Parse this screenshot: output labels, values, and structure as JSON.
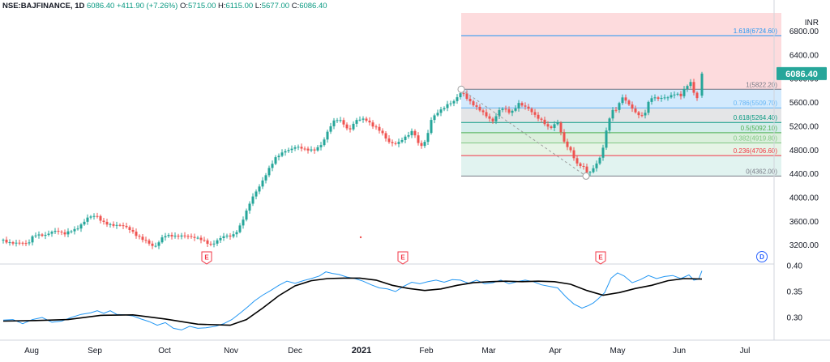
{
  "header": {
    "symbol": "NSE:BAJFINANCE, 1D",
    "last": "6086.40",
    "change": "+411.90 (+7.26%)",
    "o_label": "O:",
    "o": "5715.00",
    "h_label": "H:",
    "h": "6115.00",
    "l_label": "L:",
    "l": "5677.00",
    "c_label": "C:",
    "c": "6086.40"
  },
  "colors": {
    "up": "#26a69a",
    "down": "#ef5350",
    "price_badge": "#26a69a",
    "fib_line": "#9e9e9e",
    "indicator_line": "#2196f3",
    "indicator_ma": "#000000"
  },
  "price_axis": {
    "currency": "INR",
    "current_price": "6086.40",
    "ticks": [
      "6800.00",
      "6400.00",
      "6000.00",
      "5600.00",
      "5200.00",
      "4800.00",
      "4400.00",
      "4000.00",
      "3600.00",
      "3200.00"
    ]
  },
  "indicator_axis": {
    "ticks": [
      "0.40",
      "0.35",
      "0.30"
    ]
  },
  "x_axis": {
    "labels": [
      "Aug",
      "Sep",
      "Oct",
      "Nov",
      "Dec",
      "2021",
      "Feb",
      "Mar",
      "Apr",
      "May",
      "Jun",
      "Jul"
    ],
    "bold": "2021"
  },
  "events": {
    "label": "E",
    "dividend_label": "D"
  },
  "chart_data": [
    {
      "type": "candlestick",
      "title": "NSE:BAJFINANCE, 1D",
      "ylabel": "INR",
      "ylim": [
        3000,
        7000
      ],
      "yticks": [
        3200,
        3600,
        4000,
        4400,
        4800,
        5200,
        5600,
        6000,
        6400,
        6800
      ],
      "xticks": [
        "Aug",
        "Sep",
        "Oct",
        "Nov",
        "Dec",
        "2021",
        "Feb",
        "Mar",
        "Apr",
        "May",
        "Jun",
        "Jul"
      ],
      "last_price": 6086.4,
      "fibonacci_retracement": {
        "levels": [
          {
            "ratio": "1.618",
            "price": 6724.6
          },
          {
            "ratio": "1",
            "price": 5822.2
          },
          {
            "ratio": "0.786",
            "price": 5509.7
          },
          {
            "ratio": "0.618",
            "price": 5264.4
          },
          {
            "ratio": "0.5",
            "price": 5092.1
          },
          {
            "ratio": "0.382",
            "price": 4919.8
          },
          {
            "ratio": "0.236",
            "price": 4706.6
          },
          {
            "ratio": "0",
            "price": 4362.0
          }
        ]
      },
      "close_anchors": [
        {
          "x": 0,
          "close": 3280
        },
        {
          "x": 18,
          "close": 3230
        },
        {
          "x": 30,
          "close": 3210
        },
        {
          "x": 38,
          "close": 3400
        },
        {
          "x": 52,
          "close": 3350
        },
        {
          "x": 66,
          "close": 3460
        },
        {
          "x": 76,
          "close": 3400
        },
        {
          "x": 90,
          "close": 3450
        },
        {
          "x": 104,
          "close": 3680
        },
        {
          "x": 114,
          "close": 3690
        },
        {
          "x": 122,
          "close": 3580
        },
        {
          "x": 132,
          "close": 3560
        },
        {
          "x": 146,
          "close": 3520
        },
        {
          "x": 158,
          "close": 3450
        },
        {
          "x": 172,
          "close": 3300
        },
        {
          "x": 186,
          "close": 3150
        },
        {
          "x": 198,
          "close": 3380
        },
        {
          "x": 212,
          "close": 3330
        },
        {
          "x": 226,
          "close": 3380
        },
        {
          "x": 240,
          "close": 3300
        },
        {
          "x": 256,
          "close": 3220
        },
        {
          "x": 270,
          "close": 3330
        },
        {
          "x": 282,
          "close": 3350
        },
        {
          "x": 290,
          "close": 3480
        },
        {
          "x": 298,
          "close": 3700
        },
        {
          "x": 306,
          "close": 3950
        },
        {
          "x": 316,
          "close": 4200
        },
        {
          "x": 326,
          "close": 4450
        },
        {
          "x": 336,
          "close": 4650
        },
        {
          "x": 348,
          "close": 4800
        },
        {
          "x": 360,
          "close": 4850
        },
        {
          "x": 372,
          "close": 4800
        },
        {
          "x": 384,
          "close": 4820
        },
        {
          "x": 394,
          "close": 4900
        },
        {
          "x": 402,
          "close": 5150
        },
        {
          "x": 410,
          "close": 5340
        },
        {
          "x": 418,
          "close": 5300
        },
        {
          "x": 426,
          "close": 5100
        },
        {
          "x": 436,
          "close": 5300
        },
        {
          "x": 446,
          "close": 5350
        },
        {
          "x": 456,
          "close": 5200
        },
        {
          "x": 466,
          "close": 5100
        },
        {
          "x": 476,
          "close": 4950
        },
        {
          "x": 486,
          "close": 4900
        },
        {
          "x": 496,
          "close": 5000
        },
        {
          "x": 506,
          "close": 5150
        },
        {
          "x": 514,
          "close": 4850
        },
        {
          "x": 522,
          "close": 4950
        },
        {
          "x": 528,
          "close": 5300
        },
        {
          "x": 536,
          "close": 5450
        },
        {
          "x": 546,
          "close": 5550
        },
        {
          "x": 556,
          "close": 5600
        },
        {
          "x": 566,
          "close": 5800
        },
        {
          "x": 574,
          "close": 5650
        },
        {
          "x": 584,
          "close": 5500
        },
        {
          "x": 594,
          "close": 5400
        },
        {
          "x": 604,
          "close": 5300
        },
        {
          "x": 614,
          "close": 5500
        },
        {
          "x": 626,
          "close": 5420
        },
        {
          "x": 636,
          "close": 5600
        },
        {
          "x": 646,
          "close": 5500
        },
        {
          "x": 656,
          "close": 5380
        },
        {
          "x": 666,
          "close": 5300
        },
        {
          "x": 674,
          "close": 5150
        },
        {
          "x": 684,
          "close": 5250
        },
        {
          "x": 692,
          "close": 4950
        },
        {
          "x": 700,
          "close": 4800
        },
        {
          "x": 708,
          "close": 4550
        },
        {
          "x": 716,
          "close": 4500
        },
        {
          "x": 722,
          "close": 4400
        },
        {
          "x": 730,
          "close": 4550
        },
        {
          "x": 738,
          "close": 4700
        },
        {
          "x": 744,
          "close": 5100
        },
        {
          "x": 750,
          "close": 5450
        },
        {
          "x": 756,
          "close": 5500
        },
        {
          "x": 764,
          "close": 5700
        },
        {
          "x": 772,
          "close": 5550
        },
        {
          "x": 780,
          "close": 5420
        },
        {
          "x": 790,
          "close": 5380
        },
        {
          "x": 798,
          "close": 5680
        },
        {
          "x": 808,
          "close": 5650
        },
        {
          "x": 818,
          "close": 5700
        },
        {
          "x": 828,
          "close": 5750
        },
        {
          "x": 836,
          "close": 5700
        },
        {
          "x": 842,
          "close": 5850
        },
        {
          "x": 848,
          "close": 5950
        },
        {
          "x": 854,
          "close": 5700
        },
        {
          "x": 858,
          "close": 5680
        },
        {
          "x": 862,
          "close": 6086.4
        }
      ],
      "last_candle": {
        "open": 5715.0,
        "high": 6115.0,
        "low": 5677.0,
        "close": 6086.4
      }
    },
    {
      "type": "line",
      "ylim": [
        0.265,
        0.41
      ],
      "yticks": [
        0.3,
        0.35,
        0.4
      ],
      "series": [
        {
          "points": [
            [
              0,
              0.295
            ],
            [
              12,
              0.296
            ],
            [
              24,
              0.288
            ],
            [
              36,
              0.296
            ],
            [
              48,
              0.3
            ],
            [
              60,
              0.291
            ],
            [
              72,
              0.293
            ],
            [
              84,
              0.3
            ],
            [
              96,
              0.306
            ],
            [
              108,
              0.309
            ],
            [
              116,
              0.313
            ],
            [
              124,
              0.308
            ],
            [
              132,
              0.313
            ],
            [
              140,
              0.306
            ],
            [
              150,
              0.305
            ],
            [
              160,
              0.303
            ],
            [
              170,
              0.297
            ],
            [
              180,
              0.292
            ],
            [
              190,
              0.285
            ],
            [
              200,
              0.29
            ],
            [
              210,
              0.279
            ],
            [
              220,
              0.276
            ],
            [
              230,
              0.283
            ],
            [
              240,
              0.279
            ],
            [
              250,
              0.28
            ],
            [
              262,
              0.283
            ],
            [
              272,
              0.288
            ],
            [
              282,
              0.296
            ],
            [
              292,
              0.308
            ],
            [
              302,
              0.321
            ],
            [
              310,
              0.332
            ],
            [
              320,
              0.343
            ],
            [
              330,
              0.352
            ],
            [
              340,
              0.362
            ],
            [
              350,
              0.37
            ],
            [
              360,
              0.366
            ],
            [
              370,
              0.371
            ],
            [
              380,
              0.375
            ],
            [
              390,
              0.38
            ],
            [
              398,
              0.388
            ],
            [
              406,
              0.385
            ],
            [
              414,
              0.383
            ],
            [
              424,
              0.378
            ],
            [
              434,
              0.375
            ],
            [
              444,
              0.37
            ],
            [
              454,
              0.363
            ],
            [
              464,
              0.357
            ],
            [
              474,
              0.355
            ],
            [
              484,
              0.35
            ],
            [
              494,
              0.36
            ],
            [
              504,
              0.368
            ],
            [
              514,
              0.365
            ],
            [
              524,
              0.369
            ],
            [
              534,
              0.372
            ],
            [
              544,
              0.368
            ],
            [
              554,
              0.373
            ],
            [
              564,
              0.372
            ],
            [
              574,
              0.366
            ],
            [
              584,
              0.372
            ],
            [
              594,
              0.365
            ],
            [
              604,
              0.367
            ],
            [
              614,
              0.372
            ],
            [
              624,
              0.365
            ],
            [
              634,
              0.369
            ],
            [
              644,
              0.372
            ],
            [
              654,
              0.369
            ],
            [
              664,
              0.363
            ],
            [
              674,
              0.36
            ],
            [
              684,
              0.357
            ],
            [
              694,
              0.34
            ],
            [
              704,
              0.326
            ],
            [
              714,
              0.318
            ],
            [
              722,
              0.323
            ],
            [
              728,
              0.328
            ],
            [
              734,
              0.336
            ],
            [
              742,
              0.348
            ],
            [
              750,
              0.376
            ],
            [
              758,
              0.386
            ],
            [
              766,
              0.38
            ],
            [
              776,
              0.367
            ],
            [
              786,
              0.373
            ],
            [
              796,
              0.381
            ],
            [
              806,
              0.375
            ],
            [
              816,
              0.379
            ],
            [
              826,
              0.381
            ],
            [
              836,
              0.375
            ],
            [
              846,
              0.382
            ],
            [
              852,
              0.372
            ],
            [
              858,
              0.374
            ],
            [
              862,
              0.39
            ]
          ]
        },
        {
          "points": [
            [
              0,
              0.293
            ],
            [
              40,
              0.294
            ],
            [
              80,
              0.296
            ],
            [
              120,
              0.304
            ],
            [
              160,
              0.305
            ],
            [
              200,
              0.297
            ],
            [
              240,
              0.287
            ],
            [
              280,
              0.285
            ],
            [
              300,
              0.296
            ],
            [
              320,
              0.318
            ],
            [
              340,
              0.342
            ],
            [
              360,
              0.361
            ],
            [
              380,
              0.371
            ],
            [
              400,
              0.375
            ],
            [
              420,
              0.376
            ],
            [
              440,
              0.376
            ],
            [
              460,
              0.372
            ],
            [
              480,
              0.362
            ],
            [
              500,
              0.356
            ],
            [
              520,
              0.352
            ],
            [
              540,
              0.355
            ],
            [
              560,
              0.362
            ],
            [
              580,
              0.367
            ],
            [
              600,
              0.369
            ],
            [
              620,
              0.37
            ],
            [
              640,
              0.369
            ],
            [
              660,
              0.37
            ],
            [
              680,
              0.369
            ],
            [
              700,
              0.364
            ],
            [
              720,
              0.352
            ],
            [
              740,
              0.343
            ],
            [
              760,
              0.348
            ],
            [
              780,
              0.356
            ],
            [
              800,
              0.362
            ],
            [
              820,
              0.371
            ],
            [
              840,
              0.375
            ],
            [
              862,
              0.374
            ]
          ]
        }
      ]
    }
  ]
}
